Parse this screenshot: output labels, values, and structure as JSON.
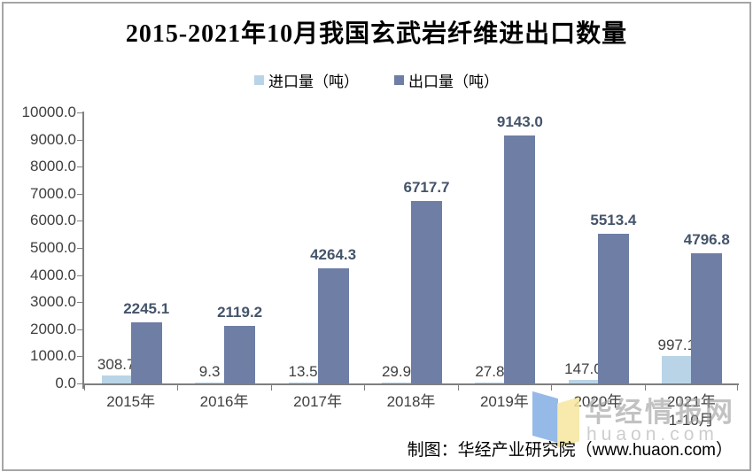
{
  "chart_data": {
    "type": "bar",
    "title": "2015-2021年10月我国玄武岩纤维进出口数量",
    "categories": [
      "2015年",
      "2016年",
      "2017年",
      "2018年",
      "2019年",
      "2020年",
      "2021年"
    ],
    "category_sublabels": [
      "",
      "",
      "",
      "",
      "",
      "",
      "1-10月"
    ],
    "series": [
      {
        "name": "进口量（吨）",
        "color": "#B9D4E7",
        "label_color": "#3f3f3f",
        "values": [
          308.7,
          9.3,
          13.5,
          29.9,
          27.8,
          147.0,
          997.1
        ]
      },
      {
        "name": "出口量（吨）",
        "color": "#6E7EA5",
        "label_color": "#44546A",
        "values": [
          2245.1,
          2119.2,
          4264.3,
          6717.7,
          9143.0,
          5513.4,
          4796.8
        ]
      }
    ],
    "ylim": [
      0,
      10000
    ],
    "ytick_step": 1000,
    "ytick_labels_desc": [
      "10000.0",
      "9000.0",
      "8000.0",
      "7000.0",
      "6000.0",
      "5000.0",
      "4000.0",
      "3000.0",
      "2000.0",
      "1000.0",
      "0.0"
    ],
    "grid": false,
    "legend_position": "top",
    "axis_line_color": "#7f7f7f",
    "tick_label_color": "#3f3f3f"
  },
  "watermark": {
    "site_name": "华经情报网",
    "site_url": "huaon.com",
    "logo_blue": "#84AEE3",
    "logo_yellow": "#F6E69E"
  },
  "source": {
    "text": "制图：华经产业研究院（www.huaon.com）"
  },
  "frame": {
    "border_color": "#a6a6a6"
  }
}
